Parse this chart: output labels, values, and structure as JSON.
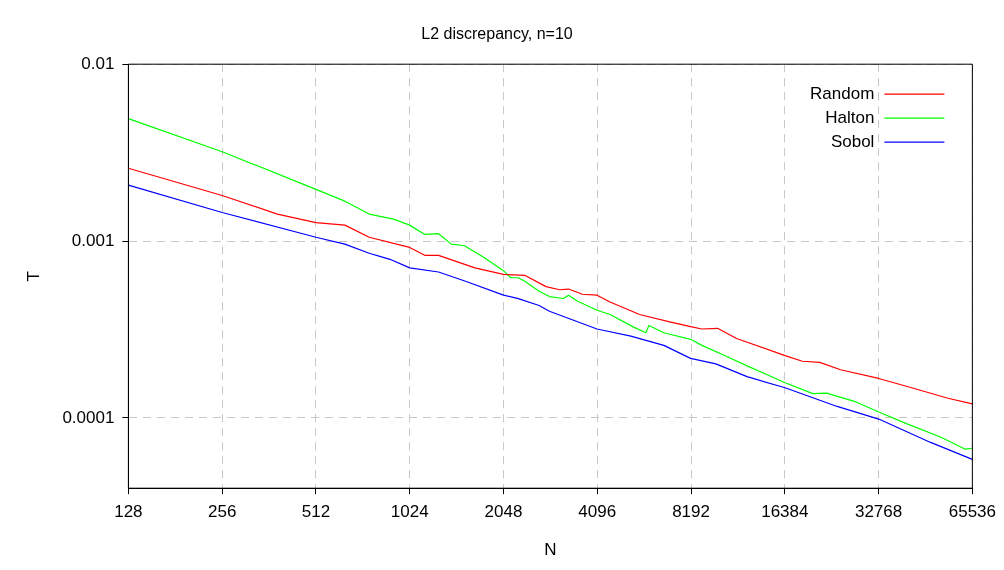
{
  "chart_data": {
    "type": "line",
    "title": "L2 discrepancy, n=10",
    "xlabel": "N",
    "ylabel": "T",
    "log": "xy",
    "xlim": [
      128,
      65536
    ],
    "xticks": [
      128,
      256,
      512,
      1024,
      2048,
      4096,
      8192,
      16384,
      32768,
      65536
    ],
    "ylim": [
      4e-05,
      0.01
    ],
    "yticks": [
      0.01,
      0.001,
      0.0001
    ],
    "grid": true,
    "legend": "top right",
    "marker": "none",
    "line_style": "solid",
    "series": [
      {
        "name": "Random",
        "color": "#ff0000",
        "x": [
          128,
          256,
          385,
          512,
          634,
          759,
          1024,
          1144,
          1267,
          1658,
          2048,
          2404,
          2804,
          3104,
          3312,
          3668,
          4088,
          4502,
          5600,
          7050,
          8164,
          8877,
          9968,
          11470,
          16416,
          18660,
          21210,
          24740,
          32800,
          41300,
          54730,
          65536
        ],
        "values": [
          0.00258,
          0.00181,
          0.00142,
          0.00127,
          0.00123,
          0.00105,
          0.00092,
          0.00083,
          0.00083,
          0.000705,
          0.000647,
          0.000639,
          0.000552,
          0.00053,
          0.000535,
          0.0005,
          0.000494,
          0.000452,
          0.000384,
          0.000348,
          0.000328,
          0.000318,
          0.000321,
          0.000281,
          0.000225,
          0.000209,
          0.000206,
          0.000187,
          0.000167,
          0.000149,
          0.000129,
          0.00012
        ]
      },
      {
        "name": "Halton",
        "color": "#00ff00",
        "x": [
          128,
          256,
          512,
          634,
          759,
          908,
          1024,
          1144,
          1267,
          1393,
          1535,
          1768,
          2048,
          2160,
          2285,
          2404,
          2665,
          2876,
          3187,
          3312,
          3531,
          4088,
          4502,
          5320,
          5866,
          6000,
          6700,
          8164,
          8877,
          10624,
          12710,
          16416,
          20160,
          22330,
          27400,
          32800,
          40260,
          51990,
          62200,
          65536
        ],
        "values": [
          0.00492,
          0.0032,
          0.00196,
          0.00168,
          0.00142,
          0.00133,
          0.00123,
          0.00109,
          0.0011,
          0.00096,
          0.00094,
          0.00081,
          0.00068,
          0.00062,
          0.00062,
          0.00059,
          0.00052,
          0.000485,
          0.000473,
          0.000494,
          0.000458,
          0.000406,
          0.000384,
          0.000328,
          0.000303,
          0.000333,
          0.000303,
          0.000278,
          0.000257,
          0.000223,
          0.000193,
          0.000158,
          0.000137,
          0.000138,
          0.000124,
          0.000108,
          9.27e-05,
          7.76e-05,
          6.65e-05,
          6.73e-05
        ]
      },
      {
        "name": "Sobol",
        "color": "#0000ff",
        "x": [
          128,
          256,
          512,
          634,
          759,
          885,
          1024,
          1267,
          1555,
          2048,
          2285,
          2665,
          2876,
          4088,
          5250,
          6700,
          8164,
          9840,
          12390,
          16416,
          24120,
          32800,
          48130,
          65536
        ],
        "values": [
          0.00207,
          0.00145,
          0.00105,
          0.00096,
          0.000853,
          0.000788,
          0.000705,
          0.000668,
          0.00059,
          0.000494,
          0.000472,
          0.000432,
          0.000401,
          0.000318,
          0.00029,
          0.000257,
          0.000217,
          0.000202,
          0.000171,
          0.000148,
          0.000116,
          9.84e-05,
          7.26e-05,
          5.82e-05
        ]
      }
    ]
  }
}
